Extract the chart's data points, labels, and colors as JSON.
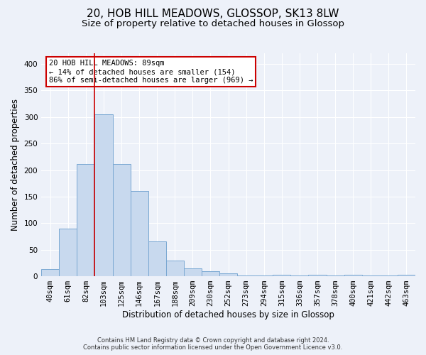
{
  "title1": "20, HOB HILL MEADOWS, GLOSSOP, SK13 8LW",
  "title2": "Size of property relative to detached houses in Glossop",
  "xlabel": "Distribution of detached houses by size in Glossop",
  "ylabel": "Number of detached properties",
  "categories": [
    "40sqm",
    "61sqm",
    "82sqm",
    "103sqm",
    "125sqm",
    "146sqm",
    "167sqm",
    "188sqm",
    "209sqm",
    "230sqm",
    "252sqm",
    "273sqm",
    "294sqm",
    "315sqm",
    "336sqm",
    "357sqm",
    "378sqm",
    "400sqm",
    "421sqm",
    "442sqm",
    "463sqm"
  ],
  "values": [
    14,
    90,
    211,
    305,
    212,
    160,
    65,
    30,
    15,
    9,
    5,
    2,
    1,
    3,
    1,
    3,
    1,
    3,
    1,
    1,
    3
  ],
  "bar_color": "#c8d9ee",
  "bar_edge_color": "#7aa8d2",
  "vline_color": "#cc0000",
  "vline_x": 2.5,
  "annotation_text": "20 HOB HILL MEADOWS: 89sqm\n← 14% of detached houses are smaller (154)\n86% of semi-detached houses are larger (969) →",
  "annotation_box_color": "#ffffff",
  "annotation_box_edge": "#cc0000",
  "ylim": [
    0,
    420
  ],
  "yticks": [
    0,
    50,
    100,
    150,
    200,
    250,
    300,
    350,
    400
  ],
  "footer1": "Contains HM Land Registry data © Crown copyright and database right 2024.",
  "footer2": "Contains public sector information licensed under the Open Government Licence v3.0.",
  "background_color": "#edf1f9",
  "plot_background": "#edf1f9",
  "grid_color": "#ffffff",
  "title1_fontsize": 11,
  "title2_fontsize": 9.5,
  "axis_label_fontsize": 8.5,
  "tick_fontsize": 7.5,
  "footer_fontsize": 6.0
}
